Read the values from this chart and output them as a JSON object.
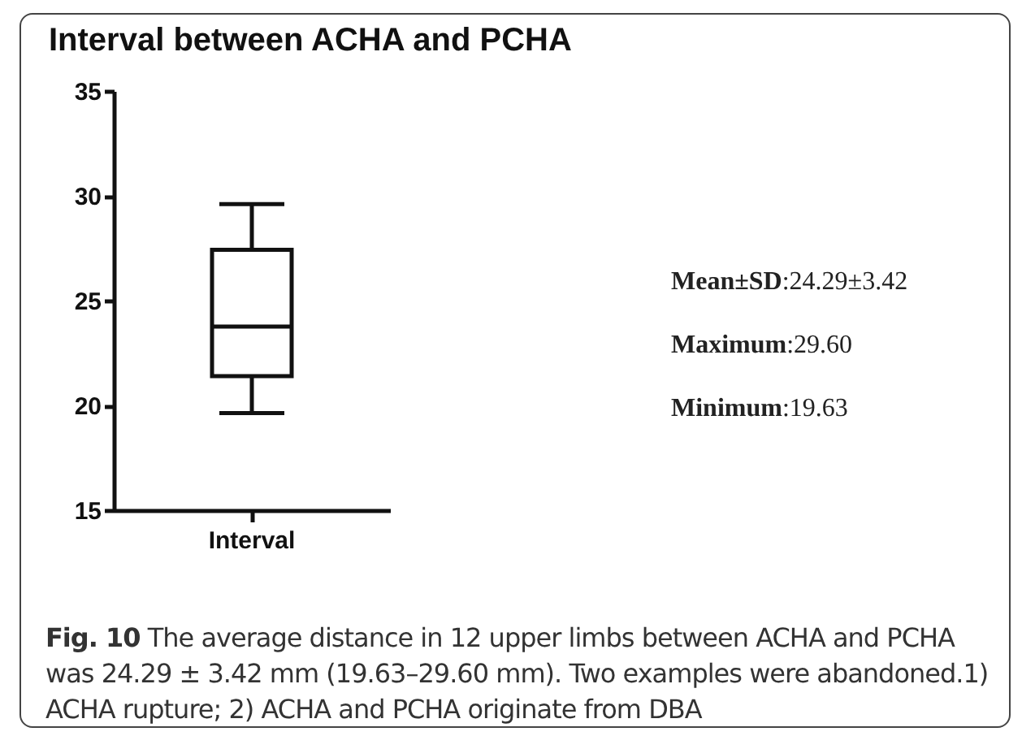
{
  "chart_data": {
    "type": "box",
    "title": "Interval between ACHA and PCHA",
    "categories": [
      "Interval"
    ],
    "boxes": [
      {
        "low": 19.63,
        "q1": 21.4,
        "median": 23.76,
        "q3": 27.42,
        "high": 29.6
      }
    ],
    "ylim": [
      15,
      35
    ],
    "yticks": [
      15,
      20,
      25,
      30,
      35
    ],
    "grid": false,
    "annotations": [
      "Mean±SD:24.29±3.42",
      "Maximum:29.60",
      "Minimum:19.63",
      "Fig. 10  The average distance in 12 upper limbs between ACHA and PCHA was 24.29 ± 3.42 mm (19.63–29.60 mm). Two examples were abandoned.1) ACHA rupture; 2) ACHA and PCHA originate from DBA"
    ]
  }
}
